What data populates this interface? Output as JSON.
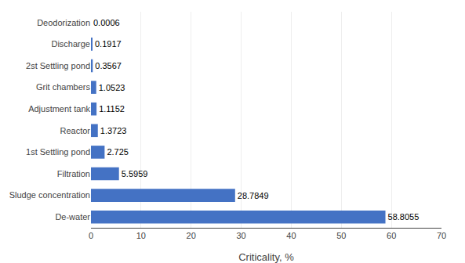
{
  "chart_data": {
    "type": "bar",
    "orientation": "horizontal",
    "categories": [
      "De-water",
      "Sludge concentration",
      "Filtration",
      "1st Settling pond",
      "Reactor",
      "Adjustment tank",
      "Grit chambers",
      "2st Settling pond",
      "Discharge",
      "Deodorization"
    ],
    "values": [
      58.8055,
      28.7849,
      5.5959,
      2.725,
      1.3723,
      1.1152,
      1.0523,
      0.3567,
      0.1917,
      0.0006
    ],
    "color": "#4472C4",
    "xlabel": "Criticality, %",
    "xlim": [
      0,
      70
    ],
    "xticks": [
      0,
      10,
      20,
      30,
      40,
      50,
      60,
      70
    ],
    "grid": true,
    "data_labels": true
  }
}
